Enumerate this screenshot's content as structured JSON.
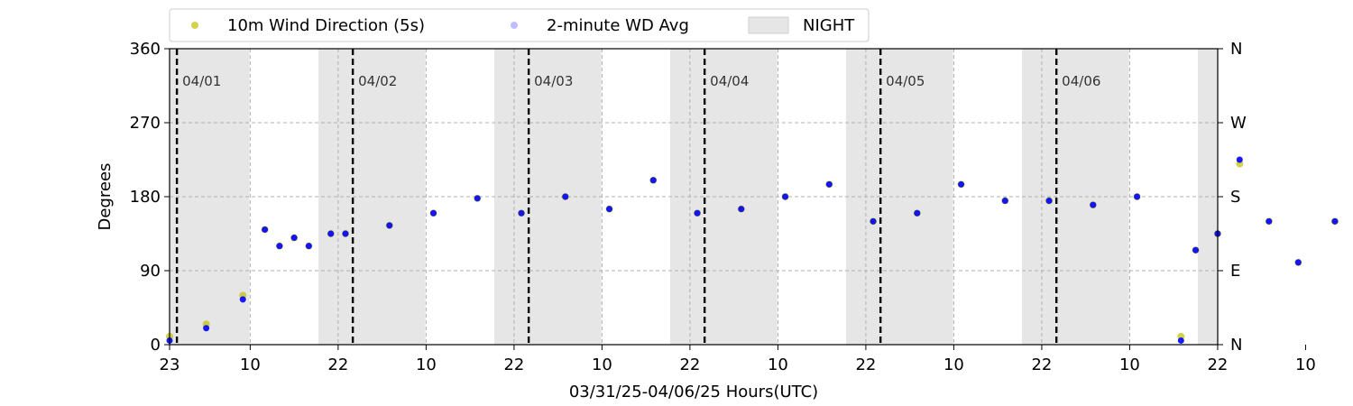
{
  "chart_data": {
    "type": "scatter",
    "title": "",
    "xlabel": "03/31/25-04/06/25  Hours(UTC)",
    "ylabel": "Degrees",
    "ylim": [
      0,
      360
    ],
    "x_tick_labels": [
      "23",
      "10",
      "22",
      "10",
      "22",
      "10",
      "22",
      "10",
      "22",
      "10",
      "22",
      "10",
      "22",
      "10"
    ],
    "y_ticks": [
      0,
      90,
      180,
      270,
      360
    ],
    "y2_tick_labels": [
      "N",
      "E",
      "S",
      "W",
      "N"
    ],
    "grid": true,
    "legend": {
      "placement": "top",
      "entries": [
        "10m Wind Direction (5s)",
        "2-minute WD Avg",
        "NIGHT"
      ]
    },
    "day_labels": [
      "04/01",
      "04/02",
      "04/03",
      "04/04",
      "04/05",
      "04/06"
    ],
    "series": [
      {
        "name": "10m Wind Direction (5s)",
        "color": "#bfbf00",
        "x_hours": [
          0,
          5,
          10,
          13,
          15,
          17,
          19,
          22,
          24,
          30,
          36,
          42,
          48,
          54,
          60,
          66,
          72,
          78,
          84,
          90,
          96,
          102,
          108,
          114,
          120,
          126,
          132,
          138,
          140,
          143,
          146,
          150,
          154,
          159
        ],
        "y": [
          10,
          25,
          60,
          140,
          120,
          130,
          120,
          135,
          135,
          145,
          160,
          178,
          160,
          180,
          165,
          200,
          160,
          165,
          180,
          195,
          150,
          160,
          195,
          175,
          175,
          170,
          180,
          10,
          115,
          135,
          220,
          150,
          100,
          150
        ]
      },
      {
        "name": "2-minute WD Avg",
        "color": "#0000ff",
        "x_hours": [
          0,
          5,
          10,
          13,
          15,
          17,
          19,
          22,
          24,
          30,
          36,
          42,
          48,
          54,
          60,
          66,
          72,
          78,
          84,
          90,
          96,
          102,
          108,
          114,
          120,
          126,
          132,
          138,
          140,
          143,
          146,
          150,
          154,
          159
        ],
        "y": [
          5,
          20,
          55,
          140,
          120,
          130,
          120,
          135,
          135,
          145,
          160,
          178,
          160,
          180,
          165,
          200,
          160,
          165,
          180,
          195,
          150,
          160,
          195,
          175,
          175,
          170,
          180,
          5,
          115,
          135,
          225,
          150,
          100,
          150
        ]
      }
    ]
  }
}
